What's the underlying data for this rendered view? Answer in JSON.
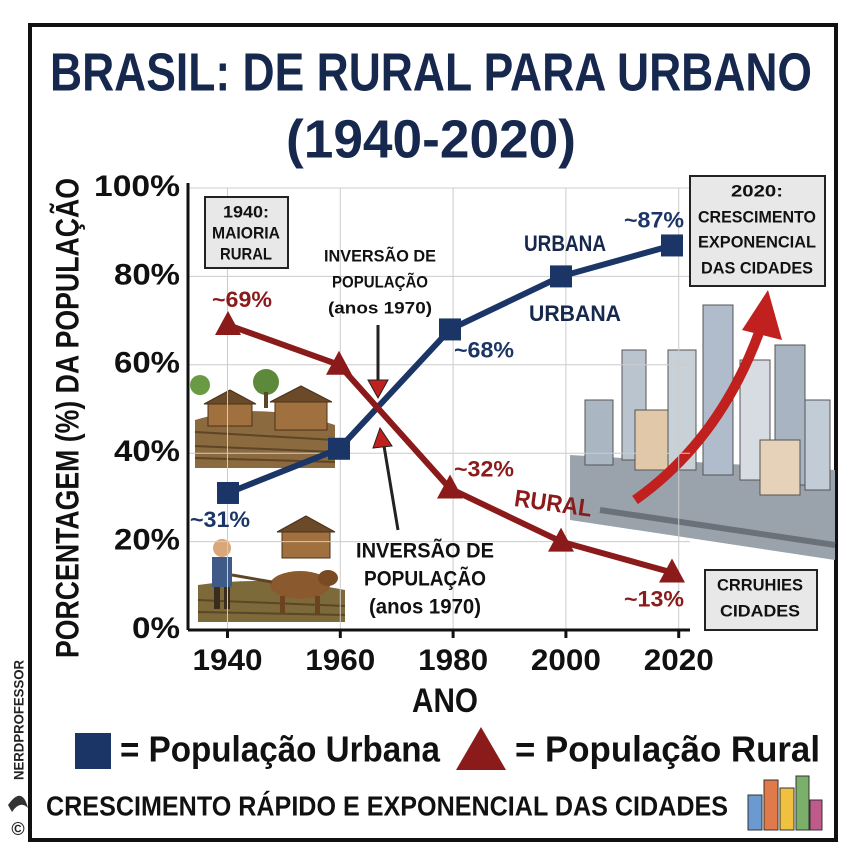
{
  "chart_data": {
    "type": "line",
    "title": "BRASIL: DE RURAL PARA URBANO",
    "subtitle": "(1940-2020)",
    "x_label": "ANO",
    "y_label": "PORCENTAGEM (%) DA POPULAÇÃO",
    "x": [
      1940,
      1960,
      1980,
      2000,
      2020
    ],
    "xlim": [
      1933,
      2022
    ],
    "xticks": [
      1940,
      1960,
      1980,
      2000,
      2020
    ],
    "ylim": [
      0,
      100
    ],
    "yticks": [
      {
        "value": 0,
        "label": "0%"
      },
      {
        "value": 20,
        "label": "20%"
      },
      {
        "value": 40,
        "label": "40%"
      },
      {
        "value": 60,
        "label": "60%"
      },
      {
        "value": 80,
        "label": "80%"
      },
      {
        "value": 100,
        "label": "100%"
      }
    ],
    "grid": true,
    "series": [
      {
        "name": "= População Urbana",
        "color": "#1b3566",
        "marker": "square",
        "values": [
          31,
          41,
          68,
          80,
          87
        ],
        "value_labels": [
          "~31%",
          null,
          "~68%",
          null,
          "~87%"
        ]
      },
      {
        "name": "= População Rural",
        "color": "#8b1a1a",
        "marker": "triangle",
        "values": [
          69,
          60,
          32,
          20,
          13
        ],
        "value_labels": [
          "~69%",
          null,
          "~32%",
          null,
          "~13%"
        ]
      }
    ],
    "annotations": [
      {
        "lines": [
          "1940:",
          "MAIORIA",
          "RURAL"
        ]
      },
      {
        "lines": [
          "INVERSÃO DE",
          "POPULAÇÃO",
          "(anos 1970)"
        ]
      },
      {
        "lines": [
          "INVERSÃO DE",
          "POPULAÇÃO",
          "(anos 1970)"
        ]
      },
      {
        "lines": [
          "2020:",
          "CRESCIMENTO",
          "EXPONENCIAL",
          "DAS CIDADES"
        ]
      },
      {
        "lines": [
          "URBANA"
        ]
      },
      {
        "lines": [
          "URBANA"
        ]
      },
      {
        "lines": [
          "RURAL"
        ]
      },
      {
        "lines": [
          "CRRUHIES",
          "CIDADES"
        ]
      }
    ]
  },
  "footer": "CRESCIMENTO RÁPIDO E EXPONENCIAL DAS CIDADES",
  "credit": "NERDPROFESSOR",
  "copyright": "©"
}
